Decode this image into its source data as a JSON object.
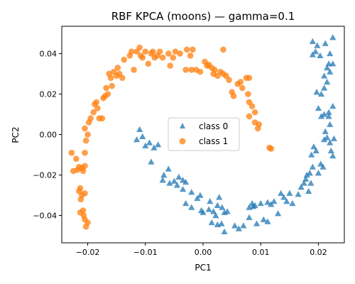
{
  "chart_data": {
    "type": "scatter",
    "title": "RBF KPCA (moons) — gamma=0.1",
    "xlabel": "PC1",
    "ylabel": "PC2",
    "xlim": [
      -0.0245,
      0.0245
    ],
    "ylim": [
      -0.0535,
      0.0535
    ],
    "xticks": [
      -0.02,
      -0.01,
      0.0,
      0.01,
      0.02
    ],
    "xtick_labels": [
      "−0.02",
      "−0.01",
      "0.00",
      "0.01",
      "0.02"
    ],
    "yticks": [
      -0.04,
      -0.02,
      0.0,
      0.02,
      0.04
    ],
    "ytick_labels": [
      "−0.04",
      "−0.02",
      "0.00",
      "0.02",
      "0.04"
    ],
    "grid": false,
    "legend_position": "center",
    "series": [
      {
        "name": "class 0",
        "marker": "triangle",
        "color": "#1f77b4",
        "points": [
          [
            -0.0105,
            -0.001
          ],
          [
            -0.011,
            0.0025
          ],
          [
            -0.0115,
            -0.0025
          ],
          [
            -0.01,
            -0.0055
          ],
          [
            -0.0093,
            -0.004
          ],
          [
            -0.0085,
            -0.0065
          ],
          [
            -0.0078,
            -0.005
          ],
          [
            -0.009,
            -0.0135
          ],
          [
            -0.006,
            -0.017
          ],
          [
            -0.0068,
            -0.02
          ],
          [
            -0.007,
            -0.0225
          ],
          [
            -0.0058,
            -0.024
          ],
          [
            -0.005,
            -0.023
          ],
          [
            -0.0045,
            -0.025
          ],
          [
            -0.0042,
            -0.021
          ],
          [
            -0.0035,
            -0.0225
          ],
          [
            -0.003,
            -0.0235
          ],
          [
            -0.0035,
            -0.027
          ],
          [
            -0.002,
            -0.0285
          ],
          [
            -0.003,
            -0.034
          ],
          [
            -0.002,
            -0.036
          ],
          [
            -0.001,
            -0.0315
          ],
          [
            -0.0005,
            -0.03
          ],
          [
            -0.0003,
            -0.0375
          ],
          [
            0.0,
            -0.0385
          ],
          [
            0.0012,
            -0.033
          ],
          [
            0.001,
            -0.037
          ],
          [
            0.0018,
            -0.038
          ],
          [
            0.0022,
            -0.04
          ],
          [
            0.0025,
            -0.035
          ],
          [
            0.0028,
            -0.031
          ],
          [
            0.0033,
            -0.036
          ],
          [
            0.0037,
            -0.0385
          ],
          [
            0.0042,
            -0.038
          ],
          [
            0.0015,
            -0.0435
          ],
          [
            0.0025,
            -0.0445
          ],
          [
            0.0032,
            -0.044
          ],
          [
            0.0037,
            -0.048
          ],
          [
            0.0055,
            -0.045
          ],
          [
            0.0062,
            -0.0465
          ],
          [
            0.007,
            -0.045
          ],
          [
            0.008,
            -0.041
          ],
          [
            0.008,
            -0.036
          ],
          [
            0.0085,
            -0.034
          ],
          [
            0.0087,
            -0.0355
          ],
          [
            0.009,
            -0.035
          ],
          [
            0.0093,
            -0.044
          ],
          [
            0.01,
            -0.034
          ],
          [
            0.0105,
            -0.042
          ],
          [
            0.0112,
            -0.043
          ],
          [
            0.0112,
            -0.0335
          ],
          [
            0.0118,
            -0.0345
          ],
          [
            0.0123,
            -0.033
          ],
          [
            0.013,
            -0.039
          ],
          [
            0.0135,
            -0.029
          ],
          [
            0.014,
            -0.031
          ],
          [
            0.0145,
            -0.033
          ],
          [
            0.015,
            -0.029
          ],
          [
            0.0155,
            -0.034
          ],
          [
            0.0165,
            -0.0295
          ],
          [
            0.017,
            -0.026
          ],
          [
            0.0175,
            -0.024
          ],
          [
            0.0178,
            -0.022
          ],
          [
            0.018,
            -0.02
          ],
          [
            0.0183,
            -0.028
          ],
          [
            0.0185,
            -0.019
          ],
          [
            0.0187,
            -0.024
          ],
          [
            0.0188,
            -0.01
          ],
          [
            0.019,
            -0.016
          ],
          [
            0.0192,
            -0.006
          ],
          [
            0.0196,
            -0.008
          ],
          [
            0.02,
            -0.019
          ],
          [
            0.0204,
            -0.0145
          ],
          [
            0.0208,
            -0.016
          ],
          [
            0.021,
            -0.0025
          ],
          [
            0.0215,
            -0.0015
          ],
          [
            0.022,
            -0.004
          ],
          [
            0.0222,
            -0.008
          ],
          [
            0.0225,
            -0.0105
          ],
          [
            0.0227,
            -0.002
          ],
          [
            0.0212,
            0.0015
          ],
          [
            0.022,
            0.005
          ],
          [
            0.0218,
            0.009
          ],
          [
            0.0225,
            0.014
          ],
          [
            0.0218,
            0.011
          ],
          [
            0.021,
            0.01
          ],
          [
            0.0205,
            0.009
          ],
          [
            0.02,
            0.013
          ],
          [
            0.0197,
            0.021
          ],
          [
            0.0205,
            0.02
          ],
          [
            0.021,
            0.023
          ],
          [
            0.0215,
            0.026
          ],
          [
            0.021,
            0.029
          ],
          [
            0.0215,
            0.033
          ],
          [
            0.0218,
            0.035
          ],
          [
            0.022,
            0.031
          ],
          [
            0.0225,
            0.035
          ],
          [
            0.022,
            0.04
          ],
          [
            0.0203,
            0.039
          ],
          [
            0.0195,
            0.041
          ],
          [
            0.019,
            0.0395
          ],
          [
            0.0198,
            0.044
          ],
          [
            0.0212,
            0.045
          ],
          [
            0.0225,
            0.048
          ],
          [
            0.019,
            0.046
          ]
        ]
      },
      {
        "name": "class 1",
        "marker": "circle",
        "color": "#ff7f0e",
        "points": [
          [
            -0.0228,
            -0.009
          ],
          [
            -0.022,
            -0.012
          ],
          [
            -0.0225,
            -0.018
          ],
          [
            -0.0218,
            -0.0175
          ],
          [
            -0.0215,
            -0.016
          ],
          [
            -0.021,
            -0.0165
          ],
          [
            -0.0205,
            -0.0155
          ],
          [
            -0.0208,
            -0.018
          ],
          [
            -0.0213,
            -0.0265
          ],
          [
            -0.0215,
            -0.028
          ],
          [
            -0.021,
            -0.03
          ],
          [
            -0.0205,
            -0.029
          ],
          [
            -0.0212,
            -0.032
          ],
          [
            -0.0208,
            -0.0375
          ],
          [
            -0.0213,
            -0.0385
          ],
          [
            -0.0207,
            -0.04
          ],
          [
            -0.0205,
            -0.042
          ],
          [
            -0.0203,
            -0.0455
          ],
          [
            -0.02,
            -0.0435
          ],
          [
            -0.0205,
            -0.009
          ],
          [
            -0.0203,
            -0.003
          ],
          [
            -0.02,
            0.0
          ],
          [
            -0.0205,
            0.003
          ],
          [
            -0.0198,
            0.006
          ],
          [
            -0.0195,
            0.008
          ],
          [
            -0.019,
            0.011
          ],
          [
            -0.0188,
            0.015
          ],
          [
            -0.0185,
            0.016
          ],
          [
            -0.0183,
            0.013
          ],
          [
            -0.018,
            0.008
          ],
          [
            -0.0175,
            0.008
          ],
          [
            -0.0173,
            0.018
          ],
          [
            -0.017,
            0.019
          ],
          [
            -0.0168,
            0.023
          ],
          [
            -0.0165,
            0.02
          ],
          [
            -0.016,
            0.028
          ],
          [
            -0.0163,
            0.03
          ],
          [
            -0.0158,
            0.024
          ],
          [
            -0.0155,
            0.031
          ],
          [
            -0.015,
            0.029
          ],
          [
            -0.0148,
            0.033
          ],
          [
            -0.0145,
            0.03
          ],
          [
            -0.014,
            0.028
          ],
          [
            -0.0137,
            0.037
          ],
          [
            -0.0127,
            0.039
          ],
          [
            -0.0124,
            0.041
          ],
          [
            -0.012,
            0.032
          ],
          [
            -0.0115,
            0.041
          ],
          [
            -0.011,
            0.043
          ],
          [
            -0.0108,
            0.039
          ],
          [
            -0.0105,
            0.038
          ],
          [
            -0.01,
            0.041
          ],
          [
            -0.0095,
            0.035
          ],
          [
            -0.009,
            0.04
          ],
          [
            -0.0087,
            0.041
          ],
          [
            -0.0084,
            0.038
          ],
          [
            -0.0079,
            0.039
          ],
          [
            -0.0075,
            0.041
          ],
          [
            -0.007,
            0.038
          ],
          [
            -0.006,
            0.04
          ],
          [
            -0.0057,
            0.034
          ],
          [
            -0.0052,
            0.038
          ],
          [
            -0.0048,
            0.041
          ],
          [
            -0.004,
            0.04
          ],
          [
            -0.0028,
            0.042
          ],
          [
            -0.0022,
            0.039
          ],
          [
            -0.0018,
            0.042
          ],
          [
            -0.003,
            0.032
          ],
          [
            -0.002,
            0.032
          ],
          [
            -0.0012,
            0.032
          ],
          [
            -0.0005,
            0.031
          ],
          [
            0.0003,
            0.036
          ],
          [
            0.0007,
            0.034
          ],
          [
            0.001,
            0.0345
          ],
          [
            0.0015,
            0.033
          ],
          [
            0.0018,
            0.03
          ],
          [
            0.002,
            0.032
          ],
          [
            0.0025,
            0.029
          ],
          [
            0.003,
            0.031
          ],
          [
            0.0035,
            0.03
          ],
          [
            0.004,
            0.029
          ],
          [
            0.0045,
            0.027
          ],
          [
            0.005,
            0.021
          ],
          [
            0.0053,
            0.019
          ],
          [
            0.006,
            0.025
          ],
          [
            0.0065,
            0.026
          ],
          [
            0.0068,
            0.023
          ],
          [
            0.0075,
            0.028
          ],
          [
            0.008,
            0.028
          ],
          [
            0.0078,
            0.02
          ],
          [
            0.008,
            0.016
          ],
          [
            0.0085,
            0.014
          ],
          [
            0.009,
            0.011
          ],
          [
            0.008,
            0.009
          ],
          [
            0.009,
            0.006
          ],
          [
            0.0095,
            0.003
          ],
          [
            0.0097,
            0.005
          ],
          [
            0.0115,
            -0.0065
          ],
          [
            0.0118,
            -0.007
          ],
          [
            0.0035,
            0.042
          ]
        ]
      }
    ]
  }
}
